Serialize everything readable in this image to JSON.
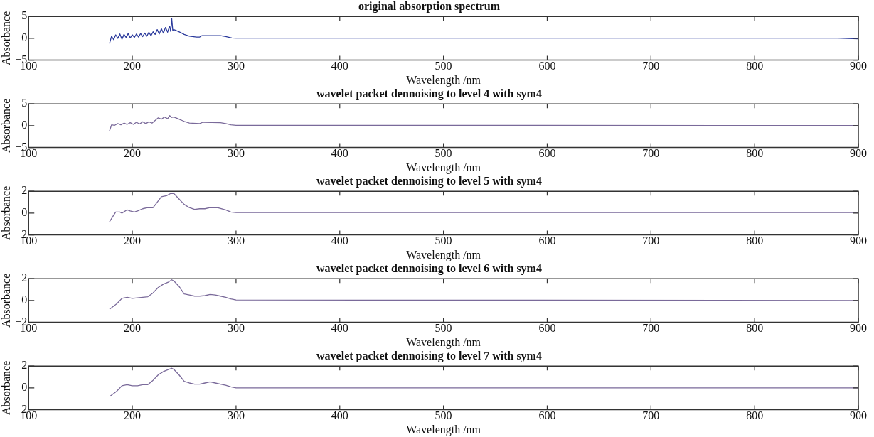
{
  "chart_data": [
    {
      "type": "line",
      "title": "original absorption spectrum",
      "xlabel": "Wavelength /nm",
      "ylabel": "Absorbance",
      "color": "#2b3a9c",
      "xlim": [
        100,
        900
      ],
      "ylim": [
        -5,
        5
      ],
      "xticks": [
        100,
        200,
        300,
        400,
        500,
        600,
        700,
        800,
        900
      ],
      "yticks": [
        -5,
        0,
        5
      ],
      "x": [
        178,
        180,
        182,
        184,
        186,
        188,
        190,
        192,
        194,
        196,
        198,
        200,
        202,
        204,
        206,
        208,
        210,
        212,
        214,
        216,
        218,
        220,
        222,
        224,
        226,
        228,
        230,
        232,
        234,
        236,
        237,
        238,
        239,
        240,
        245,
        250,
        255,
        262,
        265,
        267,
        285,
        290,
        296,
        300,
        400,
        600,
        800,
        880,
        900
      ],
      "values": [
        -1.2,
        0.5,
        -0.3,
        0.8,
        0,
        1,
        -0.2,
        0.9,
        0.2,
        1.1,
        0.1,
        0.8,
        0.2,
        1,
        0.3,
        1.1,
        0.4,
        1.2,
        0.5,
        1.4,
        0.6,
        1.5,
        0.9,
        2,
        1,
        2.2,
        1.2,
        2.5,
        1.4,
        2.8,
        1.6,
        4.5,
        1.8,
        2,
        1.5,
        0.9,
        0.5,
        0.3,
        0.3,
        0.6,
        0.6,
        0.4,
        0.1,
        0.05,
        0.05,
        0.05,
        0.05,
        0.05,
        -0.1
      ]
    },
    {
      "type": "line",
      "title": "wavelet packet dennoising to level 4 with sym4",
      "xlabel": "Wavelength /nm",
      "ylabel": "Absorbance",
      "color": "#7a6a9a",
      "xlim": [
        100,
        900
      ],
      "ylim": [
        -5,
        5
      ],
      "xticks": [
        100,
        200,
        300,
        400,
        500,
        600,
        700,
        800,
        900
      ],
      "yticks": [
        -5,
        0,
        5
      ],
      "x": [
        178,
        180,
        183,
        186,
        189,
        192,
        195,
        198,
        201,
        204,
        207,
        210,
        213,
        216,
        219,
        222,
        225,
        228,
        231,
        234,
        236,
        238,
        240,
        245,
        250,
        255,
        265,
        268,
        285,
        290,
        295,
        300,
        900
      ],
      "values": [
        -1.2,
        0.2,
        0.1,
        0.5,
        0.2,
        0.6,
        0.3,
        0.7,
        0.3,
        0.8,
        0.4,
        0.9,
        0.5,
        0.9,
        0.6,
        1.2,
        1.8,
        1.5,
        2,
        1.6,
        2.3,
        1.9,
        2,
        1.5,
        1,
        0.6,
        0.5,
        0.8,
        0.7,
        0.5,
        0.2,
        0.1,
        0.05
      ]
    },
    {
      "type": "line",
      "title": "wavelet packet dennoising to level 5 with sym4",
      "xlabel": "Wavelength /nm",
      "ylabel": "Absorbance",
      "color": "#7a6a9a",
      "xlim": [
        100,
        900
      ],
      "ylim": [
        -2,
        2
      ],
      "xticks": [
        100,
        200,
        300,
        400,
        500,
        600,
        700,
        800,
        900
      ],
      "yticks": [
        -2,
        0,
        2
      ],
      "x": [
        178,
        182,
        184,
        188,
        190,
        195,
        198,
        202,
        205,
        210,
        215,
        220,
        224,
        228,
        233,
        237,
        240,
        245,
        250,
        255,
        260,
        265,
        270,
        275,
        282,
        290,
        295,
        300,
        900
      ],
      "values": [
        -0.8,
        -0.2,
        0.1,
        0.1,
        0,
        0.3,
        0.2,
        0.1,
        0.2,
        0.4,
        0.5,
        0.5,
        1,
        1.5,
        1.6,
        1.8,
        1.8,
        1.3,
        0.8,
        0.5,
        0.35,
        0.4,
        0.4,
        0.5,
        0.5,
        0.3,
        0.1,
        0.05,
        0.05
      ]
    },
    {
      "type": "line",
      "title": "wavelet packet dennoising to level 6 with sym4",
      "xlabel": "Wavelength /nm",
      "ylabel": "Absorbance",
      "color": "#7a6a9a",
      "xlim": [
        100,
        900
      ],
      "ylim": [
        -2,
        2
      ],
      "xticks": [
        100,
        200,
        300,
        400,
        500,
        600,
        700,
        800,
        900
      ],
      "yticks": [
        -2,
        0,
        2
      ],
      "x": [
        178,
        185,
        190,
        195,
        200,
        205,
        210,
        215,
        220,
        225,
        230,
        235,
        238,
        240,
        245,
        250,
        255,
        260,
        265,
        270,
        275,
        280,
        285,
        290,
        295,
        300,
        900
      ],
      "values": [
        -0.8,
        -0.3,
        0.2,
        0.3,
        0.2,
        0.25,
        0.3,
        0.35,
        0.7,
        1.2,
        1.5,
        1.7,
        1.9,
        1.8,
        1.3,
        0.6,
        0.5,
        0.4,
        0.4,
        0.45,
        0.55,
        0.5,
        0.4,
        0.3,
        0.15,
        0.05,
        0
      ]
    },
    {
      "type": "line",
      "title": "wavelet packet dennoising to level 7 with sym4",
      "xlabel": "Wavelength /nm",
      "ylabel": "Absorbance",
      "color": "#7a6a9a",
      "xlim": [
        100,
        900
      ],
      "ylim": [
        -2,
        2
      ],
      "xticks": [
        100,
        200,
        300,
        400,
        500,
        600,
        700,
        800,
        900
      ],
      "yticks": [
        -2,
        0,
        2
      ],
      "x": [
        178,
        185,
        190,
        195,
        200,
        205,
        210,
        215,
        220,
        225,
        230,
        235,
        238,
        240,
        245,
        250,
        255,
        260,
        265,
        270,
        275,
        280,
        285,
        290,
        295,
        300,
        900
      ],
      "values": [
        -0.8,
        -0.3,
        0.2,
        0.3,
        0.2,
        0.2,
        0.3,
        0.3,
        0.7,
        1.2,
        1.5,
        1.7,
        1.8,
        1.7,
        1.2,
        0.6,
        0.45,
        0.35,
        0.35,
        0.45,
        0.55,
        0.45,
        0.35,
        0.25,
        0.1,
        0,
        0
      ]
    }
  ]
}
